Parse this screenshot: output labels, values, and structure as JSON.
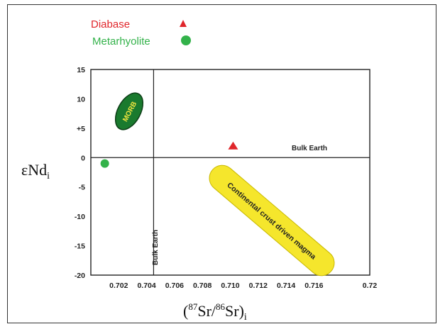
{
  "chart_data": {
    "type": "scatter",
    "xlabel": {
      "base": "(",
      "sup1": "87",
      "mid1": "Sr/",
      "sup2": "86",
      "mid2": "Sr)",
      "sub": "i"
    },
    "ylabel": {
      "base": "εNd",
      "sub": "i"
    },
    "xlim": [
      0.7,
      0.72
    ],
    "ylim": [
      -20,
      15
    ],
    "x_ticks": [
      0.702,
      0.704,
      0.706,
      0.708,
      0.71,
      0.712,
      0.714,
      0.716,
      0.72
    ],
    "x_tick_labels": [
      "0.702",
      "0.704",
      "0.706",
      "0.708",
      "0.710",
      "0.712",
      "0.714",
      "0.716",
      "0.72"
    ],
    "y_ticks": [
      15,
      10,
      5,
      0,
      -5,
      -10,
      -15,
      -20
    ],
    "y_tick_labels": [
      "15",
      "10",
      "+5",
      "0",
      "-5",
      "-10",
      "-15",
      "-20"
    ],
    "reference_lines": {
      "bulk_earth_x": 0.7045,
      "bulk_earth_y": 0,
      "vertical_label": "Bulk Earth",
      "horizontal_label": "Bulk Earth"
    },
    "fields": [
      {
        "label": "MORB",
        "color": "#1a7a2e",
        "text_color": "#f2e640"
      },
      {
        "label": "Continental crust driven magma",
        "color": "#f5e62c",
        "text_color": "#222222"
      }
    ],
    "series": [
      {
        "name": "Diabase",
        "marker": "triangle",
        "color": "#e0262b",
        "points": [
          [
            0.7102,
            2
          ]
        ]
      },
      {
        "name": "Metarhyolite",
        "marker": "circle",
        "color": "#33b24a",
        "points": [
          [
            0.701,
            -1
          ]
        ]
      }
    ],
    "legend_position": "top-left",
    "grid": false
  }
}
